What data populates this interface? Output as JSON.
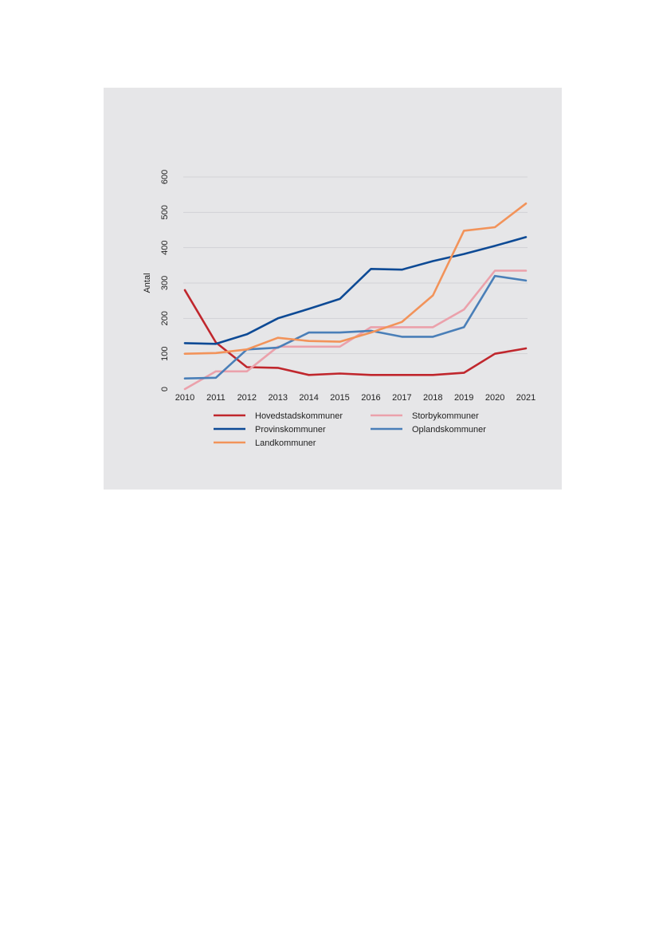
{
  "chart_data": {
    "type": "line",
    "title": "",
    "xlabel": "",
    "ylabel": "Antal",
    "ylim": [
      0,
      600
    ],
    "yticks": [
      "0",
      "100",
      "200",
      "300",
      "400",
      "500",
      "600"
    ],
    "categories": [
      "2010",
      "2011",
      "2012",
      "2013",
      "2014",
      "2015",
      "2016",
      "2017",
      "2018",
      "2019",
      "2020",
      "2021"
    ],
    "grid": "horizontal",
    "legend_position": "bottom",
    "series": [
      {
        "name": "Hovedstadskommuner",
        "color": "#c0272d",
        "values": [
          280,
          132,
          62,
          60,
          40,
          44,
          40,
          40,
          40,
          46,
          100,
          115
        ]
      },
      {
        "name": "Storbykommuner",
        "color": "#eba1ab",
        "values": [
          0,
          50,
          50,
          120,
          120,
          120,
          175,
          175,
          175,
          225,
          335,
          335
        ]
      },
      {
        "name": "Provinskommuner",
        "color": "#0d4a95",
        "values": [
          130,
          128,
          155,
          200,
          227,
          255,
          340,
          338,
          362,
          382,
          405,
          430
        ]
      },
      {
        "name": "Oplandskommuner",
        "color": "#4a7fb8",
        "values": [
          30,
          32,
          112,
          117,
          160,
          160,
          165,
          148,
          148,
          175,
          320,
          307
        ]
      },
      {
        "name": "Landkommuner",
        "color": "#f2935a",
        "values": [
          100,
          102,
          112,
          145,
          136,
          134,
          160,
          190,
          265,
          448,
          458,
          525
        ]
      }
    ]
  }
}
